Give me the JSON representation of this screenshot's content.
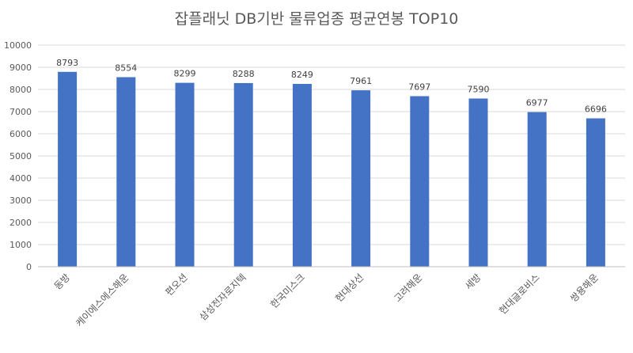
{
  "chart_data": {
    "type": "bar",
    "title": "잡플래닛 DB기반 물류업종 평균연봉 TOP10",
    "categories": [
      "동방",
      "케이에스에스해운",
      "편오션",
      "삼성전자로지텍",
      "한국미스크",
      "현대상선",
      "고려해운",
      "세방",
      "현대글로비스",
      "쌍용해운"
    ],
    "values": [
      8793,
      8554,
      8299,
      8288,
      8249,
      7961,
      7697,
      7590,
      6977,
      6696
    ],
    "ylim": [
      0,
      10000
    ],
    "yticks": [
      0,
      1000,
      2000,
      3000,
      4000,
      5000,
      6000,
      7000,
      8000,
      9000,
      10000
    ],
    "bar_color": "#4472c4",
    "grid": true,
    "legend": "none"
  }
}
